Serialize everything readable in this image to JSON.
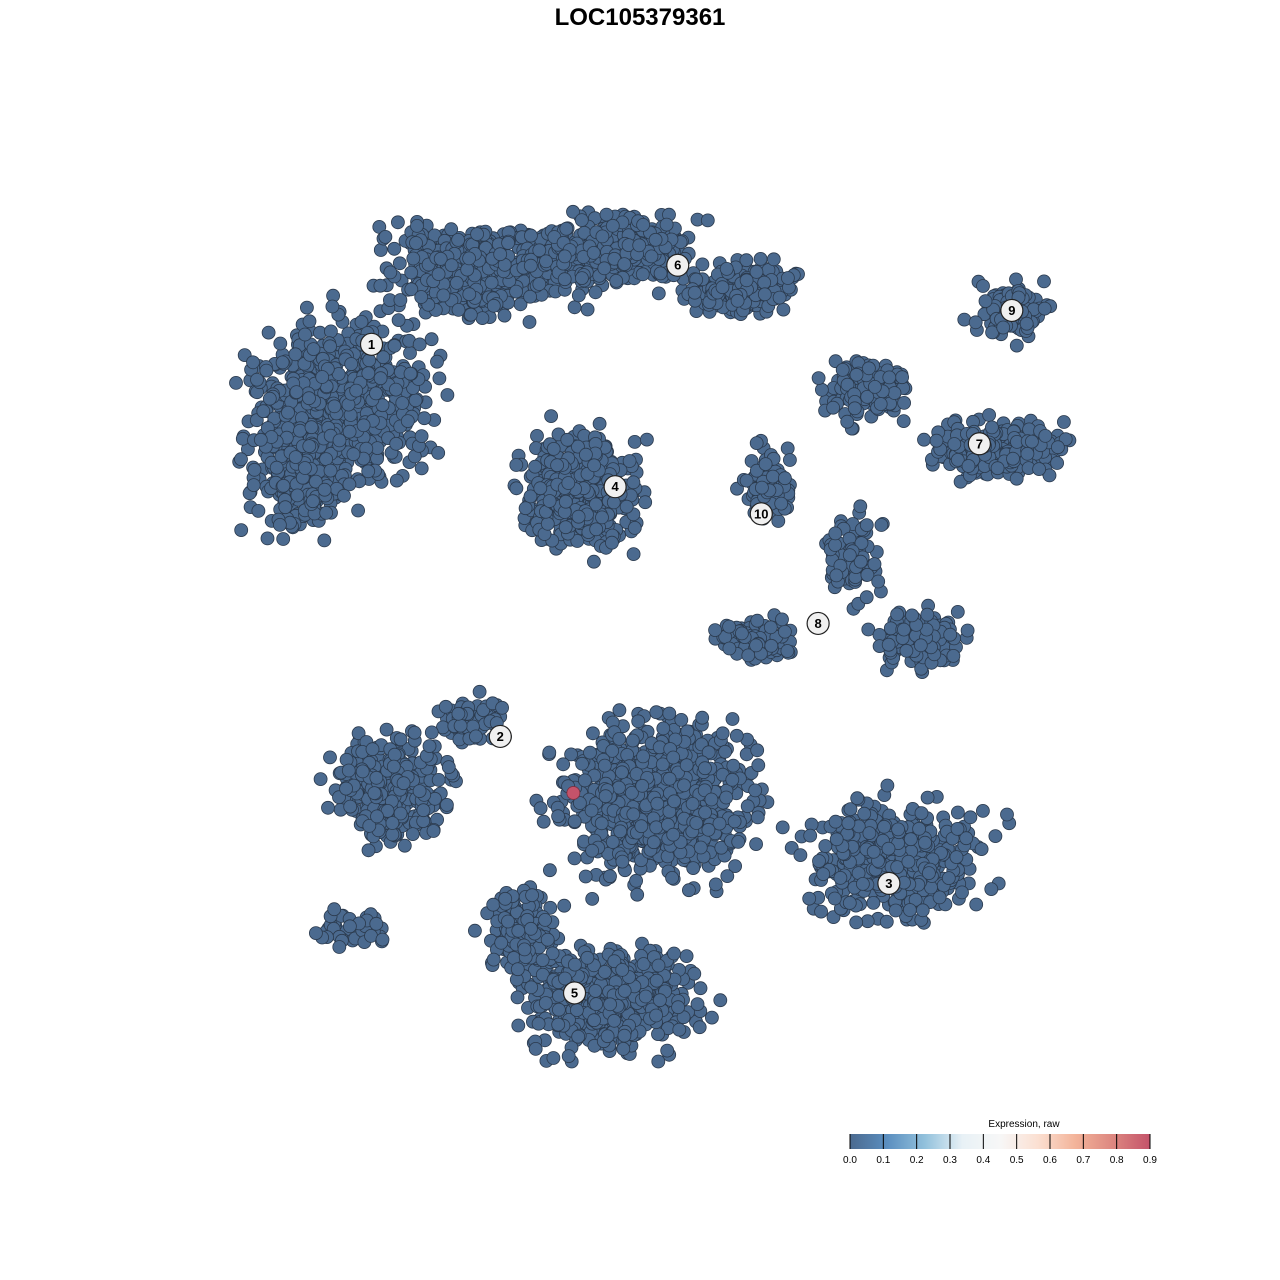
{
  "chart_data": {
    "type": "scatter",
    "title": "LOC105379361",
    "xlabel": "",
    "ylabel": "",
    "grid": false,
    "axes_visible": false,
    "point_color_default": "#4b6a8f",
    "clusters": [
      {
        "label": "1",
        "x": -25.3,
        "y": 25.9
      },
      {
        "label": "2",
        "x": -14.2,
        "y": -8.8
      },
      {
        "label": "3",
        "x": 19.3,
        "y": -21.8
      },
      {
        "label": "4",
        "x": -4.3,
        "y": 13.3
      },
      {
        "label": "5",
        "x": -7.8,
        "y": -31.5
      },
      {
        "label": "6",
        "x": 1.1,
        "y": 32.9
      },
      {
        "label": "7",
        "x": 27.1,
        "y": 17.1
      },
      {
        "label": "8",
        "x": 13.2,
        "y": 1.2
      },
      {
        "label": "9",
        "x": 29.9,
        "y": 28.9
      },
      {
        "label": "10",
        "x": 8.3,
        "y": 10.9
      }
    ],
    "highlighted_points": [
      {
        "x": -7.9,
        "y": -13.8,
        "value": 0.9
      }
    ],
    "default_value": 0.0,
    "legend": {
      "title": "Expression, raw",
      "placement": "bottom-right",
      "range": [
        0.0,
        0.9
      ],
      "ticks": [
        "0.0",
        "0.1",
        "0.2",
        "0.3",
        "0.4",
        "0.5",
        "0.6",
        "0.7",
        "0.8",
        "0.9"
      ],
      "colors": [
        "#4b6a8f",
        "#5b8fc0",
        "#92c1dc",
        "#e8f1f6",
        "#f7f7f7",
        "#fbe0d2",
        "#f3b49a",
        "#dd8780",
        "#c4536a"
      ]
    }
  }
}
